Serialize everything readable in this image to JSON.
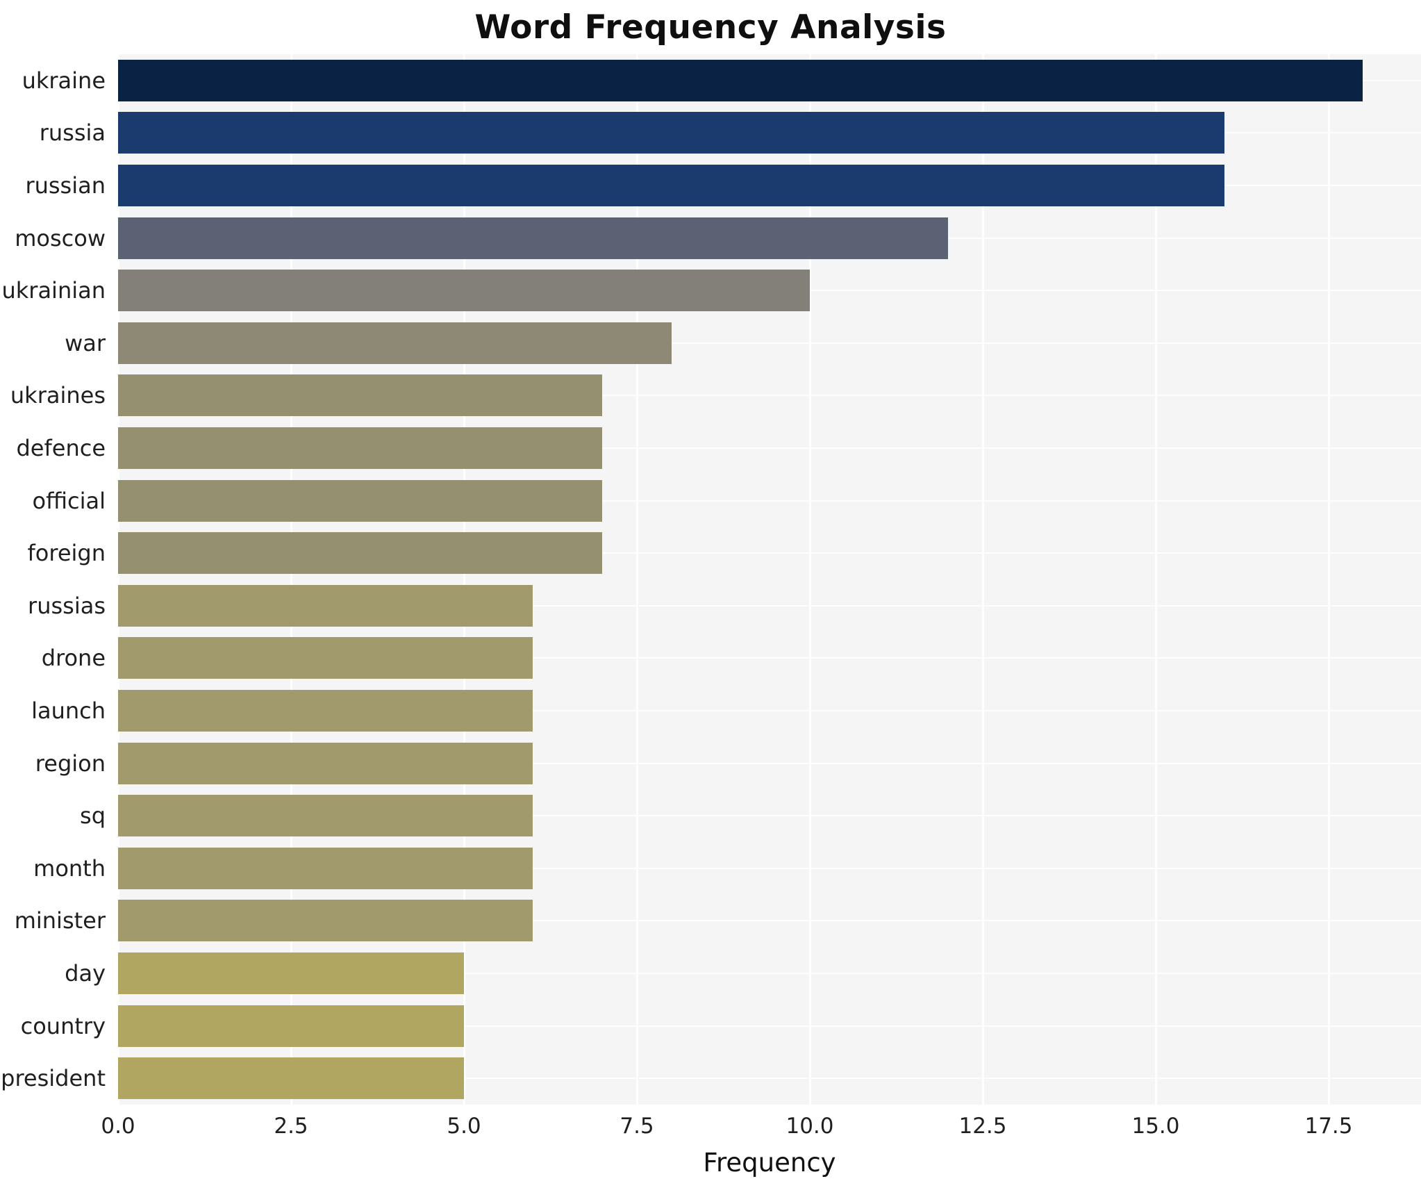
{
  "chart_data": {
    "type": "bar",
    "orientation": "horizontal",
    "title": "Word Frequency Analysis",
    "xlabel": "Frequency",
    "ylabel": "",
    "categories": [
      "ukraine",
      "russia",
      "russian",
      "moscow",
      "ukrainian",
      "war",
      "ukraines",
      "defence",
      "official",
      "foreign",
      "russias",
      "drone",
      "launch",
      "region",
      "sq",
      "month",
      "minister",
      "day",
      "country",
      "president"
    ],
    "values": [
      18,
      16,
      16,
      12,
      10,
      8,
      7,
      7,
      7,
      7,
      6,
      6,
      6,
      6,
      6,
      6,
      6,
      5,
      5,
      5
    ],
    "bar_colors": [
      "#0a2244",
      "#1b3a6d",
      "#1b3a6d",
      "#5c6274",
      "#828078",
      "#8e8974",
      "#95906f",
      "#95906f",
      "#95906f",
      "#95906f",
      "#a19a6c",
      "#a19a6c",
      "#a19a6c",
      "#a19a6c",
      "#a19a6c",
      "#a19a6c",
      "#a19a6c",
      "#b0a662",
      "#b0a662",
      "#b0a662"
    ],
    "xlim": [
      0,
      18.84
    ],
    "x_ticks": [
      "0.0",
      "2.5",
      "5.0",
      "7.5",
      "10.0",
      "12.5",
      "15.0",
      "17.5"
    ],
    "x_tick_values": [
      0,
      2.5,
      5,
      7.5,
      10,
      12.5,
      15,
      17.5
    ],
    "grid": true,
    "legend": "none",
    "plot_background": "#f5f5f6",
    "grid_color": "#ffffff"
  }
}
